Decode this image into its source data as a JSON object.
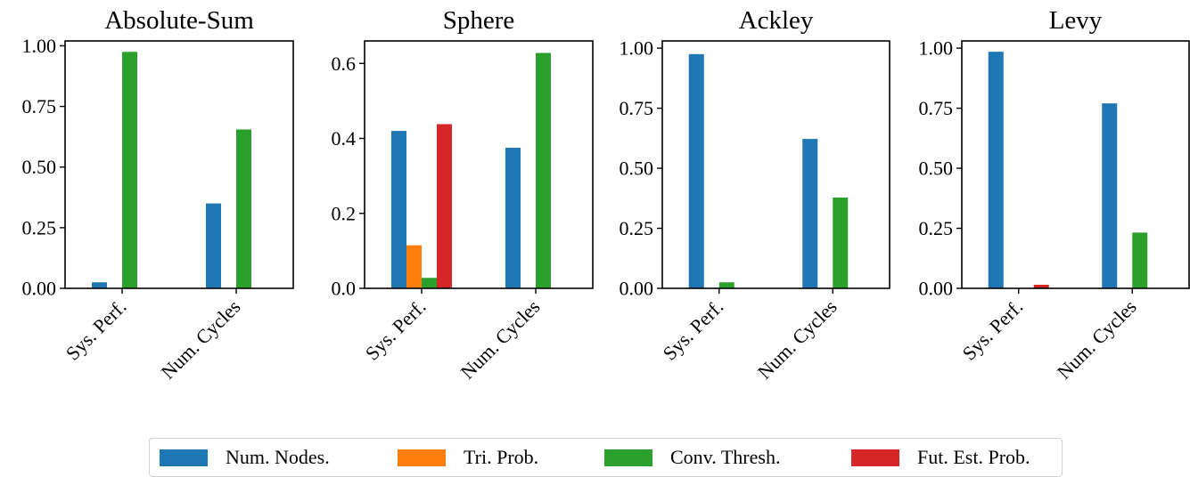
{
  "chart_data": [
    {
      "type": "bar",
      "title": "Absolute-Sum",
      "categories": [
        "Sys. Perf.",
        "Num. Cycles"
      ],
      "ylim": [
        0,
        1.02
      ],
      "yticks": [
        "0.00",
        "0.25",
        "0.50",
        "0.75",
        "1.00"
      ],
      "series": [
        {
          "name": "Num. Nodes.",
          "values": [
            0.025,
            0.35
          ]
        },
        {
          "name": "Tri. Prob.",
          "values": [
            0.0,
            0.0
          ]
        },
        {
          "name": "Conv. Thresh.",
          "values": [
            0.975,
            0.655
          ]
        },
        {
          "name": "Fut. Est. Prob.",
          "values": [
            0.0,
            0.0
          ]
        }
      ]
    },
    {
      "type": "bar",
      "title": "Sphere",
      "categories": [
        "Sys. Perf.",
        "Num. Cycles"
      ],
      "ylim": [
        0,
        0.66
      ],
      "yticks": [
        "0.0",
        "0.2",
        "0.4",
        "0.6"
      ],
      "series": [
        {
          "name": "Num. Nodes.",
          "values": [
            0.42,
            0.375
          ]
        },
        {
          "name": "Tri. Prob.",
          "values": [
            0.115,
            0.0
          ]
        },
        {
          "name": "Conv. Thresh.",
          "values": [
            0.028,
            0.628
          ]
        },
        {
          "name": "Fut. Est. Prob.",
          "values": [
            0.438,
            0.0
          ]
        }
      ]
    },
    {
      "type": "bar",
      "title": "Ackley",
      "categories": [
        "Sys. Perf.",
        "Num. Cycles"
      ],
      "ylim": [
        0,
        1.03
      ],
      "yticks": [
        "0.00",
        "0.25",
        "0.50",
        "0.75",
        "1.00"
      ],
      "series": [
        {
          "name": "Num. Nodes.",
          "values": [
            0.975,
            0.622
          ]
        },
        {
          "name": "Tri. Prob.",
          "values": [
            0.0,
            0.0
          ]
        },
        {
          "name": "Conv. Thresh.",
          "values": [
            0.025,
            0.378
          ]
        },
        {
          "name": "Fut. Est. Prob.",
          "values": [
            0.0,
            0.0
          ]
        }
      ]
    },
    {
      "type": "bar",
      "title": "Levy",
      "categories": [
        "Sys. Perf.",
        "Num. Cycles"
      ],
      "ylim": [
        0,
        1.03
      ],
      "yticks": [
        "0.00",
        "0.25",
        "0.50",
        "0.75",
        "1.00"
      ],
      "series": [
        {
          "name": "Num. Nodes.",
          "values": [
            0.985,
            0.77
          ]
        },
        {
          "name": "Tri. Prob.",
          "values": [
            0.0,
            0.0
          ]
        },
        {
          "name": "Conv. Thresh.",
          "values": [
            0.0,
            0.232
          ]
        },
        {
          "name": "Fut. Est. Prob.",
          "values": [
            0.015,
            0.0
          ]
        }
      ]
    }
  ],
  "legend": [
    {
      "label": "Num. Nodes.",
      "color": "#1f77b4"
    },
    {
      "label": "Tri. Prob.",
      "color": "#ff7f0e"
    },
    {
      "label": "Conv. Thresh.",
      "color": "#2ca02c"
    },
    {
      "label": "Fut. Est. Prob.",
      "color": "#d62728"
    }
  ],
  "colors": [
    "#1f77b4",
    "#ff7f0e",
    "#2ca02c",
    "#d62728"
  ]
}
